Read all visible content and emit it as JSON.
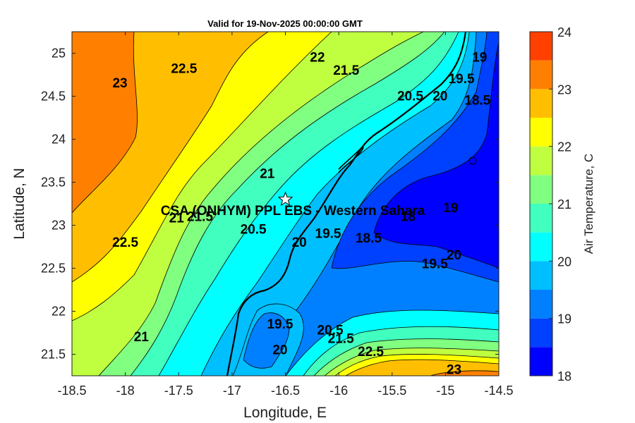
{
  "title": "Valid for 19-Nov-2025 00:00:00 GMT",
  "xlabel": "Longitude, E",
  "ylabel": "Latitude, N",
  "xlim": [
    -18.5,
    -14.5
  ],
  "ylim": [
    21.25,
    25.25
  ],
  "xticks": [
    "-18.5",
    "-18",
    "-17.5",
    "-17",
    "-16.5",
    "-16",
    "-15.5",
    "-15",
    "-14.5"
  ],
  "yticks": [
    "21.5",
    "22",
    "22.5",
    "23",
    "23.5",
    "24",
    "24.5",
    "25"
  ],
  "station": {
    "label": "CSA (ONHYM) PPL EBS  - Western Sahara",
    "lon": -16.5,
    "lat": 23.3,
    "marker": "star-icon"
  },
  "colorbar": {
    "label": "Air Temperature, C",
    "min": 18,
    "max": 24,
    "step": 0.5,
    "ticks": [
      "18",
      "19",
      "20",
      "21",
      "22",
      "23",
      "24"
    ],
    "colors": [
      "#0000ff",
      "#0040ff",
      "#0080ff",
      "#00bfff",
      "#00ffff",
      "#40ffbf",
      "#80ff80",
      "#bfff40",
      "#ffff00",
      "#ffbf00",
      "#ff8000",
      "#ff4000"
    ]
  },
  "contour_labels": [
    {
      "text": "23",
      "lon": -18.05,
      "lat": 24.65
    },
    {
      "text": "22.5",
      "lon": -17.45,
      "lat": 24.82
    },
    {
      "text": "22",
      "lon": -16.2,
      "lat": 24.95
    },
    {
      "text": "21.5",
      "lon": -15.93,
      "lat": 24.8
    },
    {
      "text": "20.5",
      "lon": -15.33,
      "lat": 24.5
    },
    {
      "text": "20",
      "lon": -15.05,
      "lat": 24.5
    },
    {
      "text": "19.5",
      "lon": -14.85,
      "lat": 24.7
    },
    {
      "text": "19",
      "lon": -14.68,
      "lat": 24.95
    },
    {
      "text": "18.5",
      "lon": -14.7,
      "lat": 24.45
    },
    {
      "text": "21",
      "lon": -16.67,
      "lat": 23.6
    },
    {
      "text": "21",
      "lon": -17.52,
      "lat": 23.08
    },
    {
      "text": "21.5",
      "lon": -17.3,
      "lat": 23.1
    },
    {
      "text": "22.5",
      "lon": -18.0,
      "lat": 22.8
    },
    {
      "text": "20.5",
      "lon": -16.8,
      "lat": 22.95
    },
    {
      "text": "20",
      "lon": -16.37,
      "lat": 22.8
    },
    {
      "text": "19.5",
      "lon": -16.1,
      "lat": 22.9
    },
    {
      "text": "18.5",
      "lon": -15.72,
      "lat": 22.85
    },
    {
      "text": "18",
      "lon": -15.35,
      "lat": 23.1
    },
    {
      "text": "19",
      "lon": -14.95,
      "lat": 23.2
    },
    {
      "text": "19.5",
      "lon": -15.1,
      "lat": 22.55
    },
    {
      "text": "20",
      "lon": -14.92,
      "lat": 22.65
    },
    {
      "text": "19.5",
      "lon": -16.55,
      "lat": 21.85
    },
    {
      "text": "20",
      "lon": -16.55,
      "lat": 21.55
    },
    {
      "text": "20.5",
      "lon": -16.08,
      "lat": 21.78
    },
    {
      "text": "21.5",
      "lon": -15.98,
      "lat": 21.68
    },
    {
      "text": "22.5",
      "lon": -15.7,
      "lat": 21.53
    },
    {
      "text": "23",
      "lon": -14.92,
      "lat": 21.32
    },
    {
      "text": "21",
      "lon": -17.85,
      "lat": 21.7
    }
  ]
}
